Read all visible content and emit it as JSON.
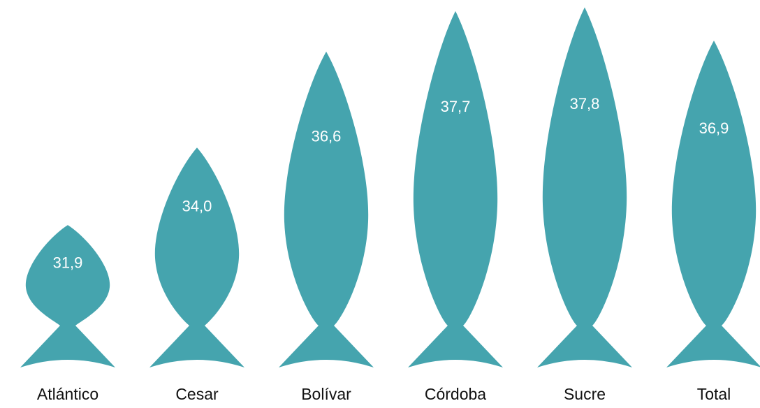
{
  "chart_data": {
    "type": "fish",
    "categories": [
      "Atlántico",
      "Cesar",
      "Bolívar",
      "Córdoba",
      "Sucre",
      "Total"
    ],
    "values": [
      31.9,
      34.0,
      36.6,
      37.7,
      37.8,
      36.9
    ],
    "value_labels": [
      "31,9",
      "34,0",
      "36,6",
      "37,7",
      "37,8",
      "36,9"
    ],
    "color": "#45a4ae",
    "ylim": [
      28,
      38
    ]
  }
}
